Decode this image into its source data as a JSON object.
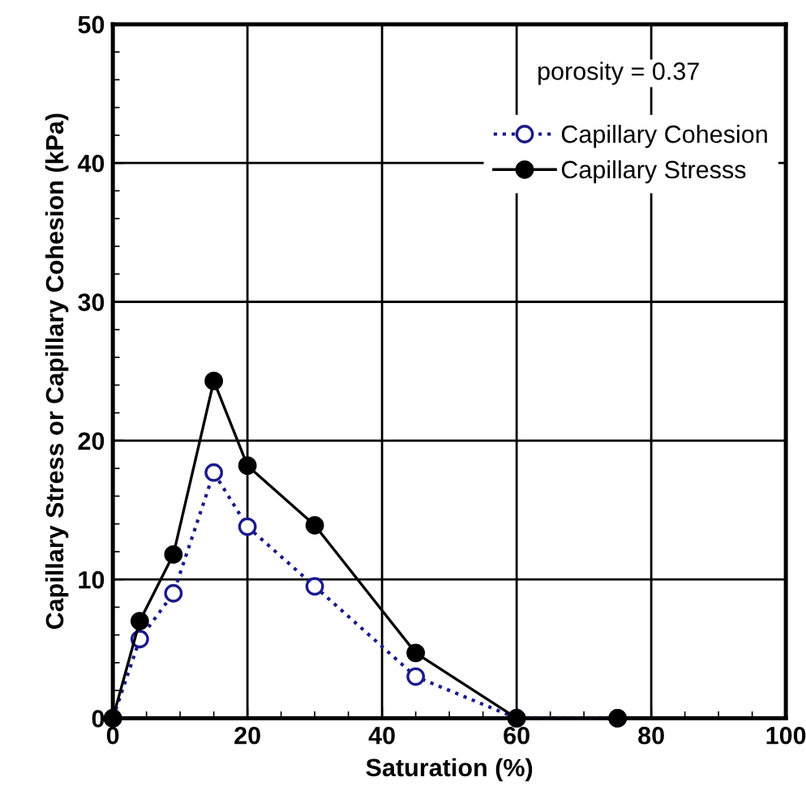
{
  "chart_data": {
    "type": "line",
    "xlabel": "Saturation (%)",
    "ylabel": "Capillary Stress or Capillary Cohesion (kPa)",
    "xlim": [
      0,
      100
    ],
    "ylim": [
      0,
      50
    ],
    "xticks": [
      0,
      20,
      40,
      60,
      80,
      100
    ],
    "yticks": [
      0,
      10,
      20,
      30,
      40,
      50
    ],
    "grid": true,
    "legend": "top right",
    "annotations": [
      "porosity = 0.37"
    ],
    "series": [
      {
        "name": "Capillary Cohesion",
        "color": "#1a1a8c",
        "line_style": "dotted",
        "marker": "circle",
        "x": [
          0,
          4,
          9,
          15,
          20,
          30,
          45,
          60,
          75
        ],
        "values": [
          0,
          5.7,
          9.0,
          17.7,
          13.8,
          9.5,
          3.0,
          0,
          0
        ]
      },
      {
        "name": "Capillary Stresss",
        "color": "#000000",
        "line_style": "solid",
        "marker": "circle",
        "x": [
          0,
          4,
          9,
          15,
          20,
          30,
          45,
          60,
          75
        ],
        "values": [
          0,
          7.0,
          11.8,
          24.3,
          18.2,
          13.9,
          4.7,
          0,
          0
        ]
      }
    ]
  }
}
